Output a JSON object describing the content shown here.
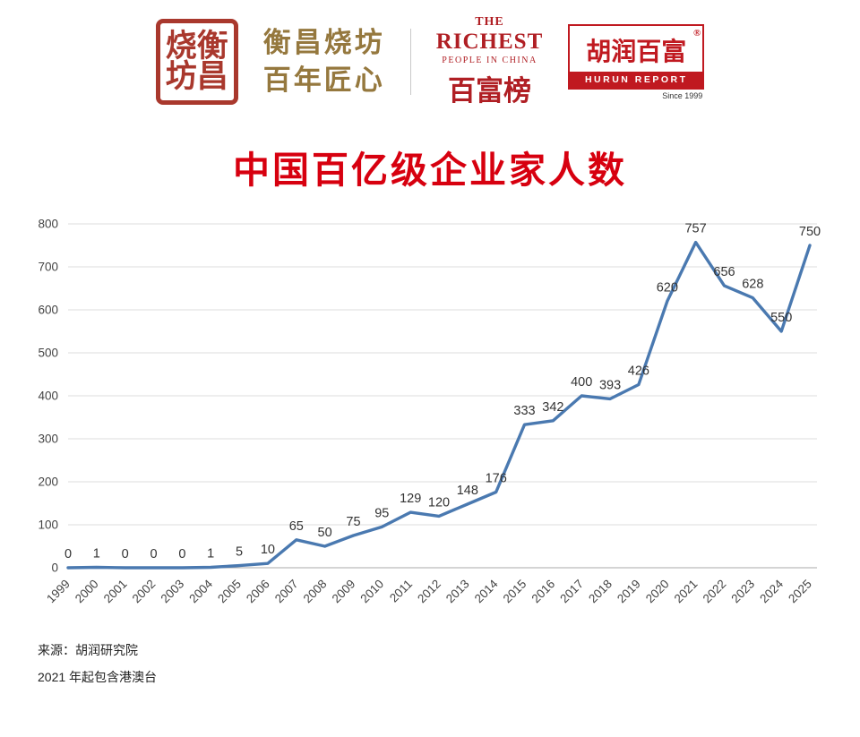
{
  "header": {
    "seal": {
      "chars": [
        "烧",
        "衡",
        "坊",
        "昌"
      ]
    },
    "brand": {
      "line1": "衡昌烧坊",
      "line2": "百年匠心"
    },
    "richest": {
      "line1": "THE",
      "line2": "RICHEST",
      "line3": "PEOPLE IN CHINA",
      "line4": "百富榜"
    },
    "hurun": {
      "cn": "胡润百富",
      "reg": "®",
      "en": "HURUN REPORT",
      "since": "Since 1999"
    }
  },
  "title": "中国百亿级企业家人数",
  "footer": {
    "source": "来源：胡润研究院",
    "note": "2021 年起包含港澳台"
  },
  "chart_data": {
    "type": "line",
    "title": "中国百亿级企业家人数",
    "categories": [
      "1999",
      "2000",
      "2001",
      "2002",
      "2003",
      "2004",
      "2005",
      "2006",
      "2007",
      "2008",
      "2009",
      "2010",
      "2011",
      "2012",
      "2013",
      "2014",
      "2015",
      "2016",
      "2017",
      "2018",
      "2019",
      "2020",
      "2021",
      "2022",
      "2023",
      "2024",
      "2025"
    ],
    "values": [
      0,
      1,
      0,
      0,
      0,
      1,
      5,
      10,
      65,
      50,
      75,
      95,
      129,
      120,
      148,
      176,
      333,
      342,
      400,
      393,
      426,
      620,
      757,
      656,
      628,
      550,
      750
    ],
    "xlabel": "",
    "ylabel": "",
    "ylim": [
      0,
      800
    ],
    "ytick_step": 100,
    "grid": true,
    "legend": false,
    "line_color": "#4a79b0"
  }
}
